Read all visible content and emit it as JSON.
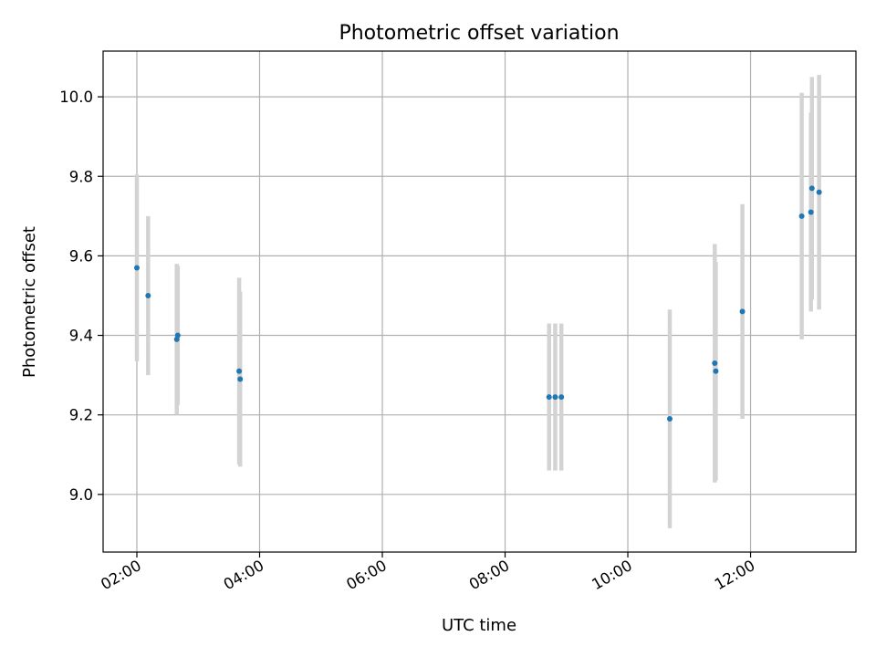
{
  "chart_data": {
    "type": "scatter",
    "title": "Photometric offset variation",
    "xlabel": "UTC time",
    "ylabel": "Photometric offset",
    "x_unit": "hours UTC",
    "xlim": [
      "01:27",
      "13:43"
    ],
    "ylim": [
      8.855,
      10.115
    ],
    "x_ticks": [
      "02:00",
      "04:00",
      "06:00",
      "08:00",
      "10:00",
      "12:00"
    ],
    "y_ticks": [
      9.0,
      9.2,
      9.4,
      9.6,
      9.8,
      10.0
    ],
    "y_tick_labels": [
      "9.0",
      "9.2",
      "9.4",
      "9.6",
      "9.8",
      "10.0"
    ],
    "grid": true,
    "marker_color": "#1f77b4",
    "errorbar_color": "#d3d3d3",
    "points": [
      {
        "x": "02:00",
        "y": 9.57,
        "err": 0.235
      },
      {
        "x": "02:11",
        "y": 9.5,
        "err": 0.2
      },
      {
        "x": "02:39",
        "y": 9.39,
        "err": 0.19
      },
      {
        "x": "02:40",
        "y": 9.4,
        "err": 0.175
      },
      {
        "x": "03:40",
        "y": 9.31,
        "err": 0.235
      },
      {
        "x": "03:41",
        "y": 9.29,
        "err": 0.22
      },
      {
        "x": "08:43",
        "y": 9.245,
        "err": 0.185
      },
      {
        "x": "08:49",
        "y": 9.245,
        "err": 0.185
      },
      {
        "x": "08:55",
        "y": 9.245,
        "err": 0.185
      },
      {
        "x": "10:41",
        "y": 9.19,
        "err": 0.275
      },
      {
        "x": "11:25",
        "y": 9.33,
        "err": 0.3
      },
      {
        "x": "11:26",
        "y": 9.31,
        "err": 0.275
      },
      {
        "x": "11:52",
        "y": 9.46,
        "err": 0.27
      },
      {
        "x": "12:50",
        "y": 9.7,
        "err": 0.31
      },
      {
        "x": "12:59",
        "y": 9.71,
        "err": 0.25
      },
      {
        "x": "13:00",
        "y": 9.77,
        "err": 0.28
      },
      {
        "x": "13:07",
        "y": 9.76,
        "err": 0.295
      }
    ]
  }
}
